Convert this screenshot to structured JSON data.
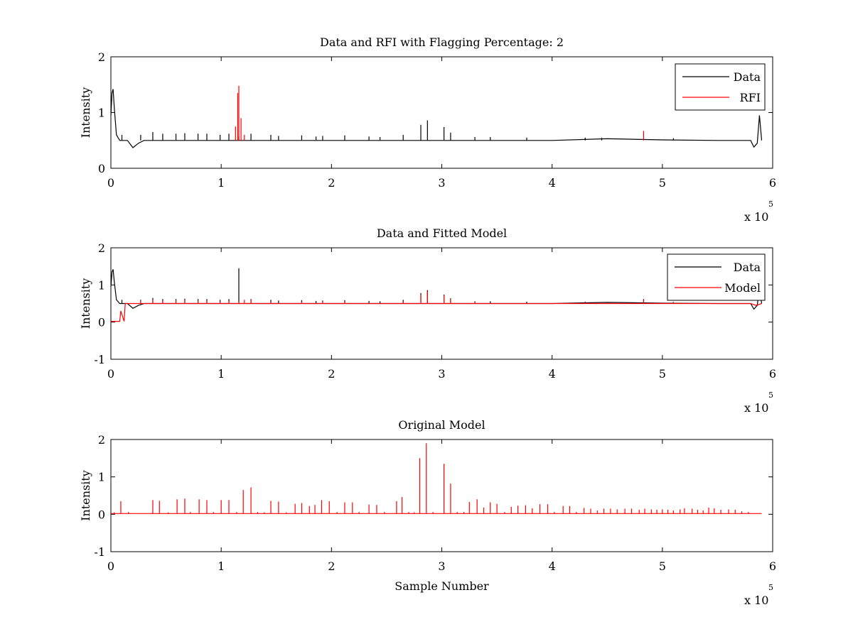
{
  "figure": {
    "background": "#ffffff",
    "colors": {
      "data": "#000000",
      "red": "#ff0000"
    }
  },
  "chart_data": [
    {
      "type": "line",
      "title": "Data and RFI with Flagging Percentage: 2",
      "xlabel": "",
      "ylabel": "Intensity",
      "xlim": [
        0,
        6
      ],
      "ylim": [
        0,
        2
      ],
      "xticks": [
        "0",
        "1",
        "2",
        "3",
        "4",
        "5",
        "6"
      ],
      "yticks": [
        "0",
        "1",
        "2"
      ],
      "x_exponent": {
        "prefix": "x 10",
        "exp": "5"
      },
      "legend": {
        "position": "top-right",
        "entries": [
          "Data",
          "RFI"
        ]
      },
      "series": [
        {
          "name": "Data",
          "color": "#000000",
          "baseline": 0.5,
          "x": [
            0,
            0.01,
            0.02,
            0.03,
            0.05,
            0.08,
            0.15,
            0.2,
            0.25,
            0.3,
            0.4,
            1.0,
            2.0,
            3.0,
            4.0,
            4.5,
            5.0,
            5.5,
            5.8,
            5.83,
            5.86,
            5.88,
            5.9
          ],
          "y": [
            0.95,
            1.35,
            1.42,
            1.1,
            0.6,
            0.5,
            0.5,
            0.37,
            0.45,
            0.5,
            0.5,
            0.5,
            0.5,
            0.5,
            0.5,
            0.53,
            0.51,
            0.5,
            0.5,
            0.38,
            0.45,
            0.95,
            0.5
          ],
          "spikes": [
            [
              0.1,
              0.6
            ],
            [
              0.27,
              0.6
            ],
            [
              0.38,
              0.65
            ],
            [
              0.47,
              0.62
            ],
            [
              0.59,
              0.62
            ],
            [
              0.67,
              0.63
            ],
            [
              0.79,
              0.62
            ],
            [
              0.87,
              0.62
            ],
            [
              0.99,
              0.6
            ],
            [
              1.07,
              0.62
            ],
            [
              1.16,
              0.58
            ],
            [
              1.27,
              0.62
            ],
            [
              1.45,
              0.6
            ],
            [
              1.52,
              0.58
            ],
            [
              1.73,
              0.59
            ],
            [
              1.86,
              0.57
            ],
            [
              1.92,
              0.58
            ],
            [
              2.12,
              0.59
            ],
            [
              2.34,
              0.57
            ],
            [
              2.44,
              0.56
            ],
            [
              2.65,
              0.6
            ],
            [
              2.81,
              0.78
            ],
            [
              2.87,
              0.86
            ],
            [
              3.02,
              0.74
            ],
            [
              3.08,
              0.64
            ],
            [
              3.3,
              0.56
            ],
            [
              3.44,
              0.56
            ],
            [
              3.77,
              0.55
            ],
            [
              4.3,
              0.55
            ],
            [
              4.45,
              0.55
            ],
            [
              5.1,
              0.54
            ]
          ]
        },
        {
          "name": "RFI",
          "color": "#ff0000",
          "baseline": 0.5,
          "spikes": [
            [
              1.13,
              0.75
            ],
            [
              1.15,
              1.35
            ],
            [
              1.16,
              1.48
            ],
            [
              1.18,
              0.9
            ],
            [
              1.21,
              0.6
            ],
            [
              4.83,
              0.67
            ]
          ]
        }
      ]
    },
    {
      "type": "line",
      "title": "Data and Fitted Model",
      "xlabel": "",
      "ylabel": "Intensity",
      "xlim": [
        0,
        6
      ],
      "ylim": [
        -1,
        2
      ],
      "xticks": [
        "0",
        "1",
        "2",
        "3",
        "4",
        "5",
        "6"
      ],
      "yticks": [
        "-1",
        "0",
        "1",
        "2"
      ],
      "x_exponent": {
        "prefix": "x 10",
        "exp": "5"
      },
      "legend": {
        "position": "top-right",
        "entries": [
          "Data",
          "Model"
        ]
      },
      "series": [
        {
          "name": "Data",
          "color": "#000000",
          "baseline": 0.5,
          "x": [
            0,
            0.01,
            0.02,
            0.03,
            0.05,
            0.08,
            0.15,
            0.2,
            0.25,
            0.3,
            0.4,
            1.0,
            2.0,
            3.0,
            4.0,
            4.5,
            5.0,
            5.5,
            5.8,
            5.83,
            5.86,
            5.88,
            5.9
          ],
          "y": [
            0.95,
            1.35,
            1.42,
            1.1,
            0.6,
            0.5,
            0.5,
            0.37,
            0.45,
            0.5,
            0.5,
            0.5,
            0.5,
            0.5,
            0.5,
            0.53,
            0.51,
            0.5,
            0.5,
            0.35,
            0.45,
            0.95,
            0.5
          ],
          "spikes": [
            [
              0.1,
              0.6
            ],
            [
              0.27,
              0.6
            ],
            [
              0.38,
              0.65
            ],
            [
              0.47,
              0.62
            ],
            [
              0.59,
              0.62
            ],
            [
              0.67,
              0.63
            ],
            [
              0.79,
              0.62
            ],
            [
              0.87,
              0.62
            ],
            [
              0.99,
              0.6
            ],
            [
              1.07,
              0.62
            ],
            [
              1.16,
              1.45
            ],
            [
              1.27,
              0.62
            ],
            [
              1.45,
              0.6
            ],
            [
              1.52,
              0.58
            ],
            [
              1.73,
              0.59
            ],
            [
              1.86,
              0.57
            ],
            [
              1.92,
              0.58
            ],
            [
              2.12,
              0.59
            ],
            [
              2.34,
              0.57
            ],
            [
              2.44,
              0.56
            ],
            [
              2.65,
              0.6
            ],
            [
              2.81,
              0.78
            ],
            [
              2.87,
              0.86
            ],
            [
              3.02,
              0.74
            ],
            [
              3.08,
              0.64
            ],
            [
              3.3,
              0.56
            ],
            [
              3.44,
              0.56
            ],
            [
              3.77,
              0.55
            ],
            [
              4.3,
              0.55
            ],
            [
              4.83,
              0.62
            ],
            [
              5.1,
              0.54
            ]
          ]
        },
        {
          "name": "Model",
          "color": "#ff0000",
          "baseline": 0.5,
          "x": [
            0,
            0.05,
            0.08,
            0.09,
            0.12,
            0.13,
            0.14,
            2.0,
            4.0,
            5.8,
            5.85,
            5.9
          ],
          "y": [
            0.02,
            0.02,
            0.02,
            0.3,
            0.02,
            0.5,
            0.5,
            0.5,
            0.5,
            0.5,
            0.45,
            0.5
          ],
          "spikes": [
            [
              0.27,
              0.58
            ],
            [
              0.38,
              0.6
            ],
            [
              0.47,
              0.58
            ],
            [
              0.59,
              0.58
            ],
            [
              0.67,
              0.6
            ],
            [
              0.79,
              0.58
            ],
            [
              0.87,
              0.58
            ],
            [
              0.99,
              0.55
            ],
            [
              1.07,
              0.57
            ],
            [
              1.16,
              0.55
            ],
            [
              1.21,
              0.6
            ],
            [
              1.27,
              0.6
            ],
            [
              1.45,
              0.55
            ],
            [
              1.73,
              0.55
            ],
            [
              1.92,
              0.56
            ],
            [
              2.12,
              0.55
            ],
            [
              2.65,
              0.56
            ],
            [
              2.81,
              0.74
            ],
            [
              2.87,
              0.82
            ],
            [
              3.02,
              0.72
            ],
            [
              3.08,
              0.62
            ],
            [
              3.3,
              0.55
            ],
            [
              4.3,
              0.54
            ],
            [
              4.83,
              0.6
            ],
            [
              5.1,
              0.53
            ]
          ]
        }
      ]
    },
    {
      "type": "line",
      "title": "Original Model",
      "xlabel": "Sample Number",
      "ylabel": "Intensity",
      "xlim": [
        0,
        6
      ],
      "ylim": [
        -1,
        2
      ],
      "xticks": [
        "0",
        "1",
        "2",
        "3",
        "4",
        "5",
        "6"
      ],
      "yticks": [
        "-1",
        "0",
        "1",
        "2"
      ],
      "x_exponent": {
        "prefix": "x 10",
        "exp": "5"
      },
      "series": [
        {
          "color": "#ff0000",
          "baseline": 0.02,
          "x": [
            0,
            5.9
          ],
          "y": [
            0.02,
            0.02
          ],
          "spikes": [
            [
              0.03,
              0.05
            ],
            [
              0.09,
              0.35
            ],
            [
              0.16,
              0.06
            ],
            [
              0.38,
              0.38
            ],
            [
              0.44,
              0.36
            ],
            [
              0.52,
              0.05
            ],
            [
              0.6,
              0.4
            ],
            [
              0.67,
              0.42
            ],
            [
              0.72,
              0.06
            ],
            [
              0.8,
              0.4
            ],
            [
              0.87,
              0.38
            ],
            [
              0.93,
              0.06
            ],
            [
              1.0,
              0.38
            ],
            [
              1.07,
              0.38
            ],
            [
              1.14,
              0.06
            ],
            [
              1.2,
              0.65
            ],
            [
              1.27,
              0.72
            ],
            [
              1.33,
              0.06
            ],
            [
              1.39,
              0.05
            ],
            [
              1.45,
              0.36
            ],
            [
              1.52,
              0.34
            ],
            [
              1.59,
              0.05
            ],
            [
              1.67,
              0.28
            ],
            [
              1.73,
              0.3
            ],
            [
              1.8,
              0.22
            ],
            [
              1.85,
              0.25
            ],
            [
              1.91,
              0.38
            ],
            [
              1.98,
              0.35
            ],
            [
              2.05,
              0.06
            ],
            [
              2.12,
              0.32
            ],
            [
              2.19,
              0.32
            ],
            [
              2.25,
              0.06
            ],
            [
              2.34,
              0.26
            ],
            [
              2.41,
              0.25
            ],
            [
              2.48,
              0.06
            ],
            [
              2.59,
              0.35
            ],
            [
              2.64,
              0.46
            ],
            [
              2.7,
              0.06
            ],
            [
              2.75,
              0.05
            ],
            [
              2.8,
              1.5
            ],
            [
              2.86,
              1.9
            ],
            [
              2.92,
              0.06
            ],
            [
              3.02,
              1.35
            ],
            [
              3.08,
              0.82
            ],
            [
              3.14,
              0.06
            ],
            [
              3.2,
              0.06
            ],
            [
              3.25,
              0.33
            ],
            [
              3.32,
              0.4
            ],
            [
              3.38,
              0.18
            ],
            [
              3.44,
              0.32
            ],
            [
              3.5,
              0.28
            ],
            [
              3.57,
              0.06
            ],
            [
              3.63,
              0.2
            ],
            [
              3.69,
              0.23
            ],
            [
              3.76,
              0.24
            ],
            [
              3.82,
              0.16
            ],
            [
              3.89,
              0.27
            ],
            [
              3.96,
              0.27
            ],
            [
              4.02,
              0.06
            ],
            [
              4.1,
              0.22
            ],
            [
              4.16,
              0.22
            ],
            [
              4.22,
              0.06
            ],
            [
              4.29,
              0.17
            ],
            [
              4.35,
              0.15
            ],
            [
              4.41,
              0.1
            ],
            [
              4.47,
              0.15
            ],
            [
              4.53,
              0.15
            ],
            [
              4.59,
              0.13
            ],
            [
              4.66,
              0.15
            ],
            [
              4.72,
              0.15
            ],
            [
              4.79,
              0.12
            ],
            [
              4.84,
              0.15
            ],
            [
              4.9,
              0.13
            ],
            [
              4.95,
              0.12
            ],
            [
              5.0,
              0.13
            ],
            [
              5.05,
              0.12
            ],
            [
              5.1,
              0.1
            ],
            [
              5.16,
              0.13
            ],
            [
              5.2,
              0.16
            ],
            [
              5.27,
              0.15
            ],
            [
              5.32,
              0.12
            ],
            [
              5.37,
              0.1
            ],
            [
              5.42,
              0.18
            ],
            [
              5.47,
              0.16
            ],
            [
              5.53,
              0.12
            ],
            [
              5.6,
              0.13
            ],
            [
              5.66,
              0.12
            ],
            [
              5.72,
              0.08
            ],
            [
              5.78,
              0.06
            ]
          ]
        }
      ]
    }
  ]
}
